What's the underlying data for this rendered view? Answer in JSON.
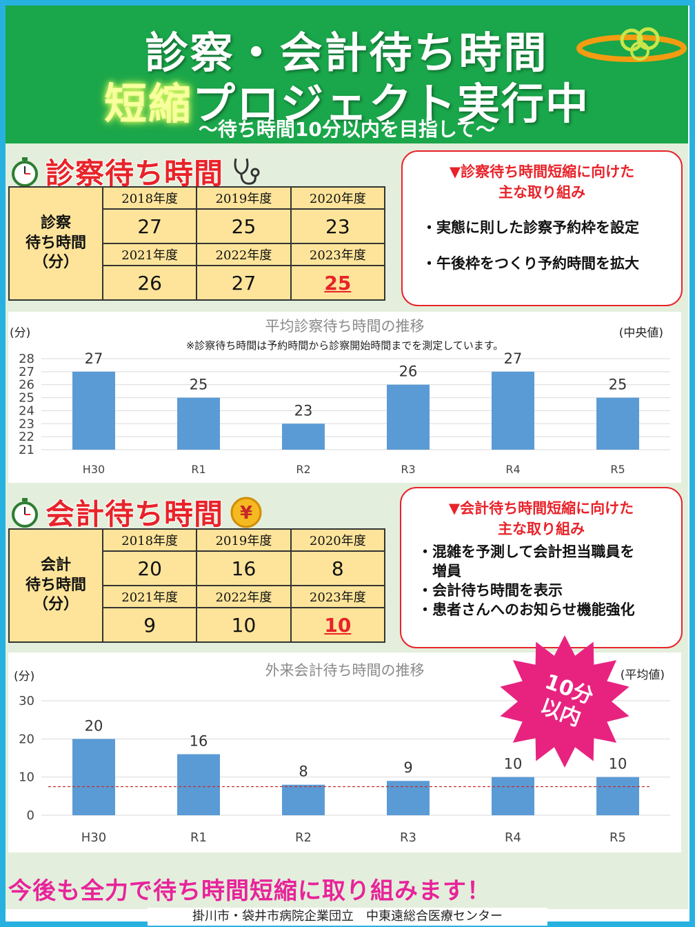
{
  "header": {
    "title_line1": "診察・会計待ち時間",
    "title_highlight": "短縮",
    "title_line2_rest": "プロジェクト実行中",
    "subtitle": "～待ち時間10分以内を目指して～"
  },
  "exam": {
    "title": "診察待ち時間",
    "row_label": "診察\n待ち時間\n（分）",
    "years_row1": [
      "2018年度",
      "2019年度",
      "2020年度"
    ],
    "values_row1": [
      "27",
      "25",
      "23"
    ],
    "years_row2": [
      "2021年度",
      "2022年度",
      "2023年度"
    ],
    "values_row2": [
      "26",
      "27",
      "25"
    ],
    "box_title": "▼診察待ち時間短縮に向けた\n主な取り組み",
    "box_items": [
      "・実態に則した診察予約枠を設定",
      "・午後枠をつくり予約時間を拡大"
    ]
  },
  "billing": {
    "title": "会計待ち時間",
    "row_label": "会計\n待ち時間\n（分）",
    "years_row1": [
      "2018年度",
      "2019年度",
      "2020年度"
    ],
    "values_row1": [
      "20",
      "16",
      "8"
    ],
    "years_row2": [
      "2021年度",
      "2022年度",
      "2023年度"
    ],
    "values_row2": [
      "9",
      "10",
      "10"
    ],
    "box_title": "▼会計待ち時間短縮に向けた\n主な取り組み",
    "box_items": [
      "・混雑を予測して会計担当職員を\n　増員",
      "・会計待ち時間を表示",
      "・患者さんへのお知らせ機能強化"
    ]
  },
  "chart_data": [
    {
      "type": "bar",
      "title": "平均診察待ち時間の推移",
      "note": "※診察待ち時間は予約時間から診察開始時間までを測定しています。",
      "ylabel": "(分)",
      "stat_label": "(中央値)",
      "categories": [
        "H30",
        "R1",
        "R2",
        "R3",
        "R4",
        "R5"
      ],
      "values": [
        27,
        25,
        23,
        26,
        27,
        25
      ],
      "ylim": [
        21,
        28
      ],
      "yticks": [
        21,
        22,
        23,
        24,
        25,
        26,
        27,
        28
      ],
      "grid": true,
      "color": "#5b9bd5"
    },
    {
      "type": "bar",
      "title": "外来会計待ち時間の推移",
      "ylabel": "(分)",
      "stat_label": "(平均値)",
      "categories": [
        "H30",
        "R1",
        "R2",
        "R3",
        "R4",
        "R5"
      ],
      "values": [
        20,
        16,
        8,
        9,
        10,
        10
      ],
      "ylim": [
        0,
        30
      ],
      "yticks": [
        0,
        10,
        20,
        30
      ],
      "grid": true,
      "target_line": 7.5,
      "color": "#5b9bd5"
    }
  ],
  "badge": {
    "text_line1": "10分",
    "text_line2": "以内"
  },
  "closing": "今後も全力で待ち時間短縮に取り組みます！",
  "footer": "掛川市・袋井市病院企業団立　中東遠総合医療センター",
  "colors": {
    "header_green": "#1aa64a",
    "accent_red": "#e8232a",
    "accent_pink": "#e8239a",
    "bar_blue": "#5b9bd5",
    "table_yellow": "#fde49a",
    "frame_blue": "#27b1e0"
  }
}
